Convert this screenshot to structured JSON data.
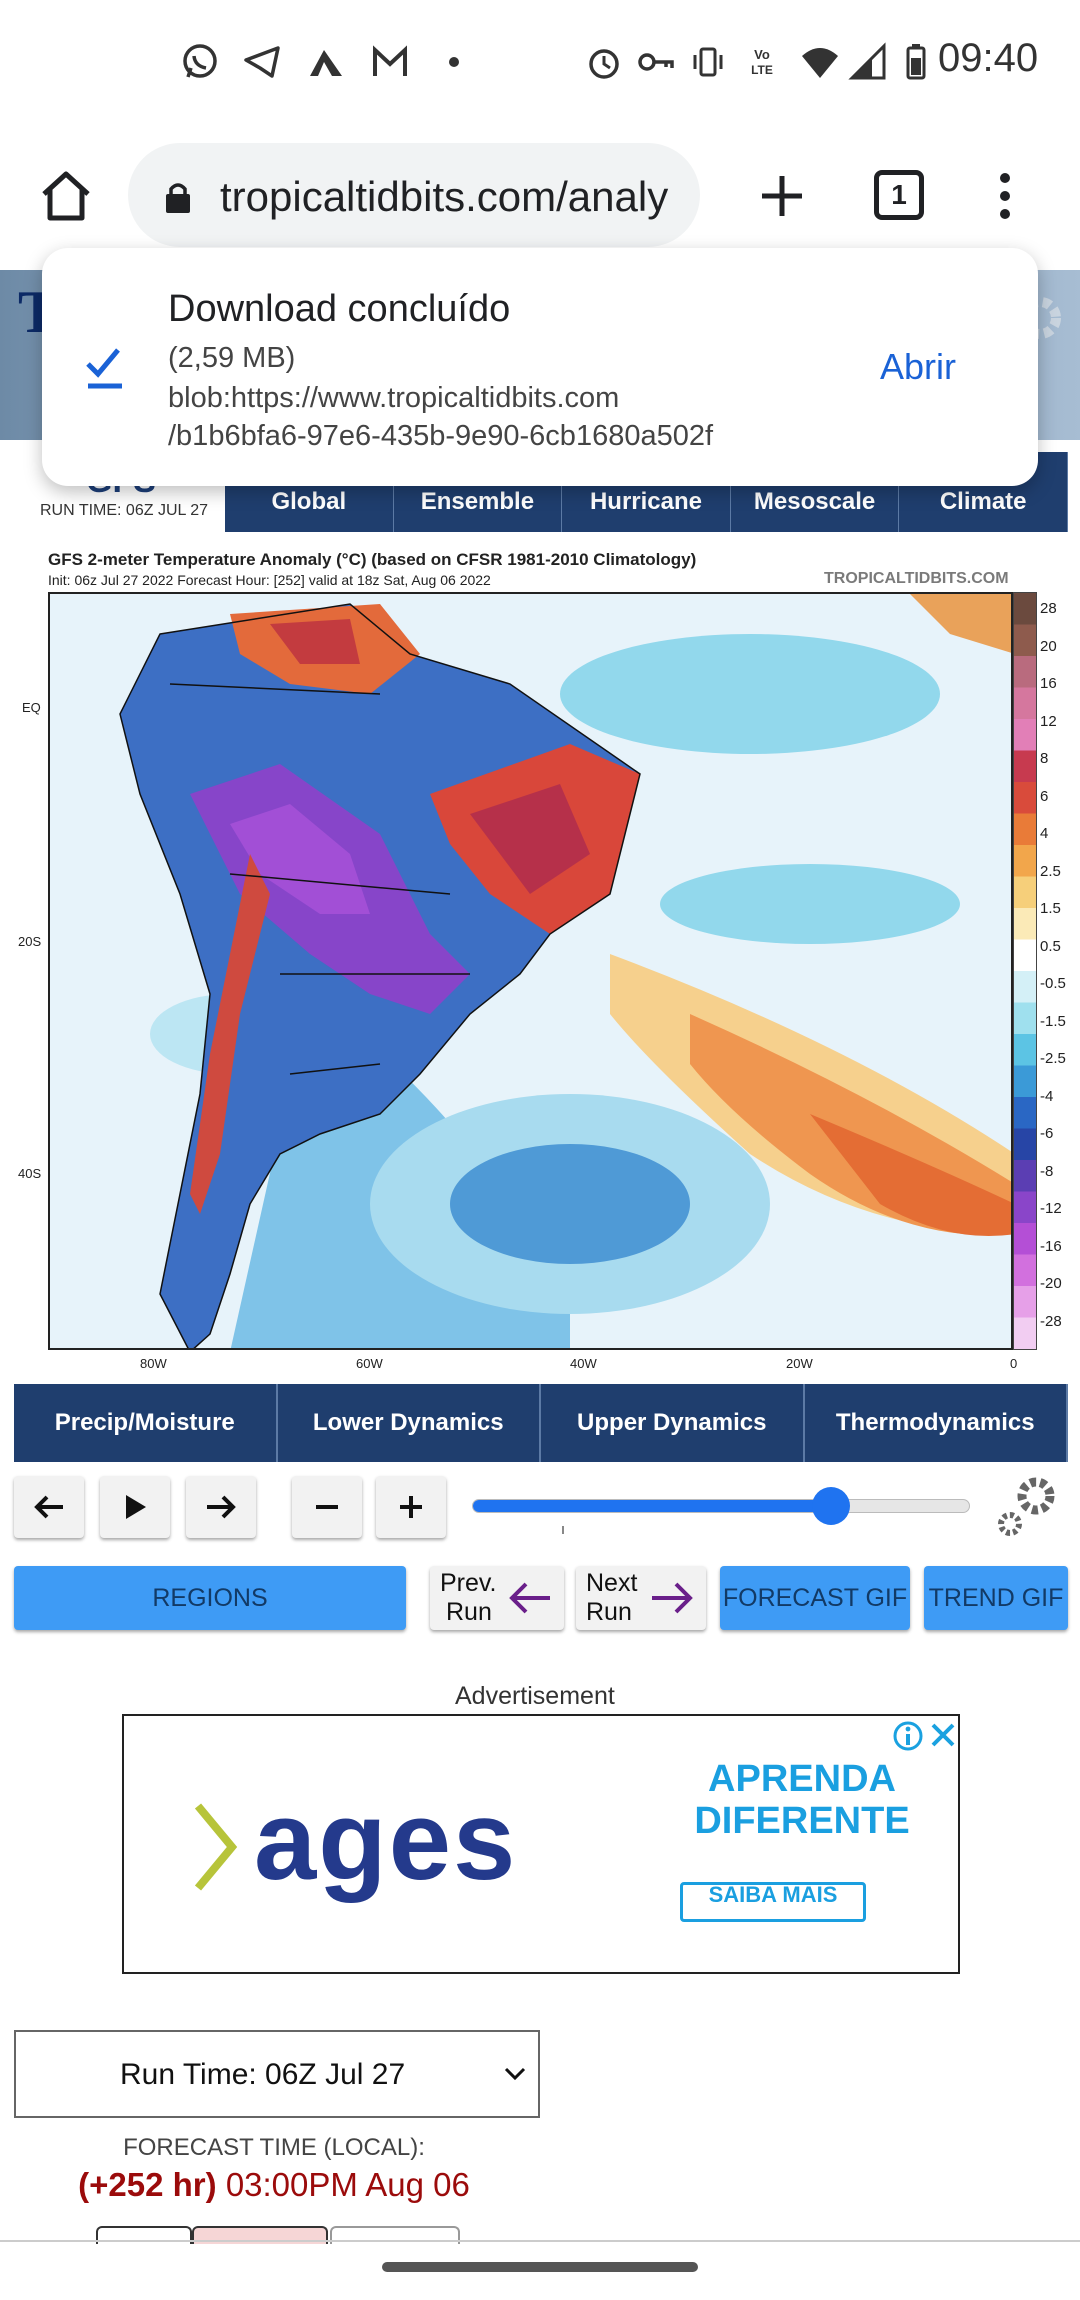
{
  "status_bar": {
    "time": "09:40",
    "left_icons": [
      "whatsapp-icon",
      "telegram-icon",
      "app-icon",
      "gmail-icon",
      "dot-icon"
    ],
    "right_icons": [
      "alarm-icon",
      "vpn-key-icon",
      "vibrate-icon",
      "volte-icon",
      "wifi-icon",
      "signal-icon",
      "battery-icon"
    ]
  },
  "browser": {
    "url": "tropicaltidbits.com/analy",
    "tab_count": "1"
  },
  "download_notification": {
    "title": "Download concluído",
    "size": "(2,59 MB)",
    "source_line1": "blob:https://www.tropicaltidbits.com",
    "source_line2": "/b1b6bfa6-97e6-435b-9e90-6cb1680a502f",
    "open_label": "Abrir"
  },
  "header": {
    "model_label": "GFS",
    "run_time": "RUN TIME: 06Z JUL 27",
    "nav_items": [
      "Global",
      "Ensemble",
      "Hurricane",
      "Mesoscale",
      "Climate"
    ]
  },
  "map": {
    "title": "GFS 2-meter Temperature Anomaly (°C) (based on CFSR 1981-2010 Climatology)",
    "subtitle": "Init: 06z Jul 27 2022   Forecast Hour: [252]   valid at 18z Sat, Aug 06 2022",
    "brand": "TROPICALTIDBITS.COM",
    "lat_labels": [
      "EQ",
      "20S",
      "40S"
    ],
    "lon_labels": [
      "80W",
      "60W",
      "40W",
      "20W",
      "0"
    ],
    "scale_labels": [
      "28",
      "20",
      "16",
      "12",
      "8",
      "6",
      "4",
      "2.5",
      "1.5",
      "0.5",
      "-0.5",
      "-1.5",
      "-2.5",
      "-4",
      "-6",
      "-8",
      "-12",
      "-16",
      "-20",
      "-28"
    ],
    "scale_colors": [
      "#6b4a3e",
      "#8e5b4d",
      "#b96b7e",
      "#d5779e",
      "#e27fb7",
      "#c73a4f",
      "#d94b3b",
      "#e97b38",
      "#f2a64b",
      "#f6cf7a",
      "#fbeab7",
      "#ffffff",
      "#d4f0f7",
      "#9fe0ee",
      "#5cc4e4",
      "#3b9ad7",
      "#2a67c4",
      "#2745a6",
      "#5b3eb3",
      "#8a45c9",
      "#b44fd6",
      "#d270de",
      "#e6a0e8",
      "#f2cdf2"
    ]
  },
  "categories": [
    "Precip/Moisture",
    "Lower Dynamics",
    "Upper Dynamics",
    "Thermodynamics"
  ],
  "controls": {
    "slider_value": 0.72,
    "buttons": [
      "back-arrow",
      "play",
      "forward-arrow",
      "minus",
      "plus"
    ]
  },
  "actions": {
    "regions": "REGIONS",
    "prev_run": [
      "Prev.",
      "Run"
    ],
    "next_run": [
      "Next",
      "Run"
    ],
    "forecast_gif": "FORECAST GIF",
    "trend_gif": "TREND GIF"
  },
  "ad": {
    "label": "Advertisement",
    "brand": "ages",
    "headline1": "APRENDA",
    "headline2": "DIFERENTE",
    "cta": "SAIBA MAIS"
  },
  "run_select": {
    "value": "Run Time: 06Z Jul 27"
  },
  "forecast": {
    "label": "FORECAST TIME (LOCAL):",
    "hours": "(+252 hr)",
    "time": "03:00PM Aug 06"
  }
}
